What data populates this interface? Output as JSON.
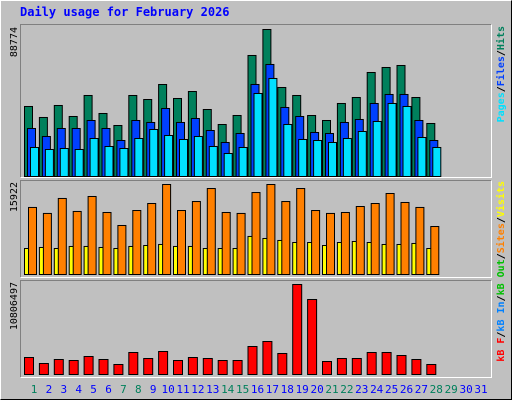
{
  "legend_separator": "/",
  "chart_data": [
    {
      "type": "bar",
      "title": "Daily usage for February 2026",
      "ylim": [
        0,
        88774
      ],
      "yticks": [
        88774
      ],
      "series": [
        {
          "name": "Hits",
          "color": "#00805c",
          "values": [
            42280,
            35640,
            42880,
            36240,
            48920,
            38050,
            30800,
            48920,
            46500,
            55560,
            47110,
            51330,
            40460,
            31400,
            36840,
            73080,
            88774,
            53750,
            48920,
            36840,
            33820,
            44090,
            47710,
            62810,
            65830,
            67040,
            47710,
            32010,
            null,
            null,
            null
          ]
        },
        {
          "name": "Files",
          "color": "#0040ff",
          "values": [
            28990,
            24160,
            28990,
            28990,
            33820,
            28990,
            21740,
            33820,
            32620,
            41070,
            32620,
            35030,
            27780,
            20540,
            25970,
            55570,
            67650,
            41680,
            36240,
            26580,
            25970,
            32620,
            34430,
            44090,
            49530,
            49530,
            33820,
            21740,
            null,
            null,
            null
          ]
        },
        {
          "name": "Pages",
          "color": "#00e0ff",
          "values": [
            17520,
            16310,
            16910,
            16310,
            22950,
            18120,
            16910,
            22950,
            28390,
            24760,
            22350,
            24160,
            18120,
            13890,
            17520,
            50130,
            59190,
            31410,
            22350,
            21740,
            20540,
            22950,
            27180,
            33220,
            44090,
            42280,
            23560,
            17520,
            null,
            null,
            null
          ]
        }
      ]
    },
    {
      "type": "bar",
      "ylim": [
        0,
        15922
      ],
      "yticks": [
        15922
      ],
      "series": [
        {
          "name": "Visits",
          "color": "#ffff00",
          "values": [
            4600,
            4780,
            4600,
            4960,
            4960,
            4780,
            4600,
            4960,
            5130,
            5310,
            4960,
            4960,
            4600,
            4600,
            4600,
            6730,
            6370,
            6020,
            5660,
            5660,
            5130,
            5660,
            5840,
            5660,
            5310,
            5310,
            5490,
            4600,
            null,
            null,
            null
          ]
        },
        {
          "name": "Sites",
          "color": "#ff8000",
          "values": [
            11860,
            10800,
            13450,
            11150,
            13800,
            10970,
            8670,
            11320,
            12560,
            15922,
            11320,
            12910,
            15210,
            10970,
            10800,
            14500,
            15922,
            12910,
            15210,
            11320,
            10800,
            10970,
            12030,
            12560,
            14330,
            12740,
            11860,
            8490,
            null,
            null,
            null
          ]
        }
      ]
    },
    {
      "type": "bar",
      "ylim": [
        0,
        10806497
      ],
      "yticks": [
        10806497
      ],
      "series": [
        {
          "name": "kB F",
          "color": "#ff0000",
          "values": [
            2041000,
            1321000,
            1801000,
            1681000,
            2161000,
            1801000,
            1201000,
            2642000,
            1921000,
            2762000,
            1681000,
            2041000,
            1921000,
            1681000,
            1681000,
            3362000,
            3962000,
            2522000,
            10806497,
            9005000,
            1561000,
            1921000,
            1921000,
            2642000,
            2642000,
            2281000,
            1801000,
            1201000,
            null,
            null,
            null
          ]
        }
      ],
      "legend_extra": [
        {
          "name": "kB In",
          "color": "#0080ff"
        },
        {
          "name": "kB Out",
          "color": "#00c000"
        }
      ],
      "categories": [
        "1",
        "2",
        "3",
        "4",
        "5",
        "6",
        "7",
        "8",
        "9",
        "10",
        "11",
        "12",
        "13",
        "14",
        "15",
        "16",
        "17",
        "18",
        "19",
        "20",
        "21",
        "22",
        "23",
        "24",
        "25",
        "26",
        "27",
        "28",
        "29",
        "30",
        "31"
      ],
      "category_colors": [
        "#00805c",
        "#0000ff",
        "#0000ff",
        "#0000ff",
        "#0000ff",
        "#0000ff",
        "#00805c",
        "#00805c",
        "#0000ff",
        "#0000ff",
        "#0000ff",
        "#0000ff",
        "#0000ff",
        "#00805c",
        "#00805c",
        "#0000ff",
        "#0000ff",
        "#0000ff",
        "#0000ff",
        "#0000ff",
        "#00805c",
        "#00805c",
        "#0000ff",
        "#0000ff",
        "#0000ff",
        "#0000ff",
        "#0000ff",
        "#00805c",
        "#00805c",
        "#0000ff",
        "#0000ff"
      ]
    }
  ]
}
